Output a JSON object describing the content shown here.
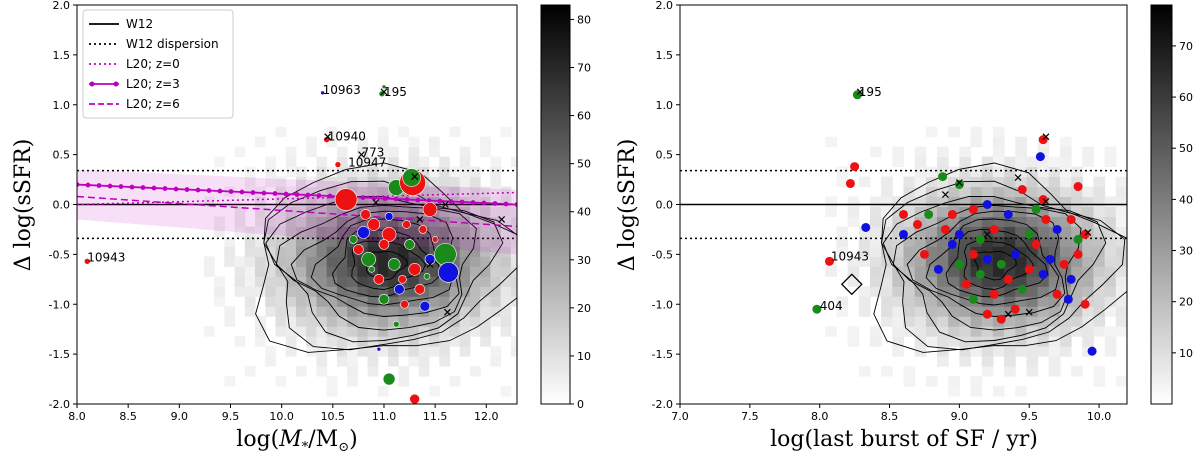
{
  "chart_data": [
    {
      "type": "scatter",
      "panel": "left",
      "xlabel": "log(M*/M⊙)",
      "xlabel_main": "log(",
      "xlabel_M": "M",
      "xlabel_sub1": "*",
      "xlabel_slash": "/M",
      "xlabel_sub2": "⊙",
      "xlabel_end": ")",
      "ylabel": "Δ log(sSFR)",
      "xlim": [
        8.0,
        12.3
      ],
      "ylim": [
        -2.0,
        2.0
      ],
      "xticks": [
        "8.0",
        "8.5",
        "9.0",
        "9.5",
        "10.0",
        "10.5",
        "11.0",
        "11.5",
        "12.0"
      ],
      "yticks": [
        "-2.0",
        "-1.5",
        "-1.0",
        "-0.5",
        "0.0",
        "0.5",
        "1.0",
        "1.5",
        "2.0"
      ],
      "colorbar_ticks": [
        "0",
        "10",
        "20",
        "30",
        "40",
        "50",
        "60",
        "70",
        "80"
      ],
      "colorbar_range": [
        0,
        83
      ],
      "legend": [
        {
          "label": "W12",
          "style": "solid",
          "color": "#000000"
        },
        {
          "label": "W12 dispersion",
          "style": "dotted",
          "color": "#000000"
        },
        {
          "label": "L20; z=0",
          "style": "dotted",
          "color": "#bf00bf"
        },
        {
          "label": "L20; z=3",
          "style": "solid-marker",
          "color": "#bf00bf"
        },
        {
          "label": "L20; z=6",
          "style": "dashed",
          "color": "#bf00bf"
        }
      ],
      "annotations": [
        {
          "text": "10963",
          "x": 10.4,
          "y": 1.15
        },
        {
          "text": "195",
          "x": 11.0,
          "y": 1.13
        },
        {
          "text": "10940",
          "x": 10.45,
          "y": 0.68
        },
        {
          "text": "773",
          "x": 10.78,
          "y": 0.52
        },
        {
          "text": "10947",
          "x": 10.65,
          "y": 0.42
        },
        {
          "text": "10943",
          "x": 8.1,
          "y": -0.53
        }
      ],
      "points": [
        {
          "x": 8.1,
          "y": -0.57,
          "c": "red",
          "s": 3
        },
        {
          "x": 10.4,
          "y": 1.12,
          "c": "blue",
          "s": 2
        },
        {
          "x": 10.98,
          "y": 1.11,
          "c": "green",
          "s": 3
        },
        {
          "x": 11.0,
          "y": 1.18,
          "c": "green",
          "s": 2
        },
        {
          "x": 10.44,
          "y": 0.65,
          "c": "red",
          "s": 3
        },
        {
          "x": 10.55,
          "y": 0.4,
          "c": "red",
          "s": 3
        },
        {
          "x": 10.63,
          "y": 0.05,
          "c": "red",
          "s": 11
        },
        {
          "x": 11.12,
          "y": 0.17,
          "c": "green",
          "s": 8
        },
        {
          "x": 11.28,
          "y": 0.22,
          "c": "red",
          "s": 13
        },
        {
          "x": 11.27,
          "y": 0.27,
          "c": "green",
          "s": 9
        },
        {
          "x": 11.45,
          "y": -0.05,
          "c": "red",
          "s": 7
        },
        {
          "x": 11.6,
          "y": -0.5,
          "c": "green",
          "s": 11
        },
        {
          "x": 11.63,
          "y": -0.68,
          "c": "blue",
          "s": 10
        },
        {
          "x": 10.9,
          "y": -0.2,
          "c": "red",
          "s": 6
        },
        {
          "x": 10.8,
          "y": -0.28,
          "c": "blue",
          "s": 6
        },
        {
          "x": 11.05,
          "y": -0.3,
          "c": "red",
          "s": 7
        },
        {
          "x": 10.85,
          "y": -0.55,
          "c": "green",
          "s": 7
        },
        {
          "x": 11.0,
          "y": -0.4,
          "c": "red",
          "s": 5
        },
        {
          "x": 11.1,
          "y": -0.6,
          "c": "green",
          "s": 6
        },
        {
          "x": 10.95,
          "y": -0.75,
          "c": "red",
          "s": 5
        },
        {
          "x": 11.15,
          "y": -0.85,
          "c": "blue",
          "s": 5
        },
        {
          "x": 11.3,
          "y": -0.65,
          "c": "red",
          "s": 6
        },
        {
          "x": 11.35,
          "y": -0.85,
          "c": "red",
          "s": 5
        },
        {
          "x": 11.2,
          "y": -1.0,
          "c": "red",
          "s": 4
        },
        {
          "x": 11.4,
          "y": -1.02,
          "c": "blue",
          "s": 5
        },
        {
          "x": 11.45,
          "y": -0.55,
          "c": "blue",
          "s": 5
        },
        {
          "x": 10.75,
          "y": -0.45,
          "c": "red",
          "s": 5
        },
        {
          "x": 10.7,
          "y": -0.35,
          "c": "green",
          "s": 4
        },
        {
          "x": 10.82,
          "y": -0.1,
          "c": "red",
          "s": 5
        },
        {
          "x": 11.0,
          "y": -0.95,
          "c": "green",
          "s": 5
        },
        {
          "x": 11.25,
          "y": -0.4,
          "c": "green",
          "s": 5
        },
        {
          "x": 11.38,
          "y": -0.25,
          "c": "red",
          "s": 4
        },
        {
          "x": 11.05,
          "y": -0.12,
          "c": "blue",
          "s": 4
        },
        {
          "x": 11.12,
          "y": -1.2,
          "c": "green",
          "s": 3
        },
        {
          "x": 10.95,
          "y": -1.45,
          "c": "blue",
          "s": 2
        },
        {
          "x": 11.05,
          "y": -1.75,
          "c": "green",
          "s": 6
        },
        {
          "x": 11.3,
          "y": -1.95,
          "c": "red",
          "s": 5
        },
        {
          "x": 11.22,
          "y": -0.2,
          "c": "red",
          "s": 4
        },
        {
          "x": 11.18,
          "y": -0.75,
          "c": "red",
          "s": 4
        },
        {
          "x": 10.88,
          "y": -0.65,
          "c": "green",
          "s": 3
        },
        {
          "x": 11.42,
          "y": -0.72,
          "c": "green",
          "s": 3
        },
        {
          "x": 11.5,
          "y": -0.35,
          "c": "red",
          "s": 3
        }
      ],
      "crosses": [
        {
          "x": 10.45,
          "y": 0.68
        },
        {
          "x": 11.0,
          "y": 1.13
        },
        {
          "x": 10.78,
          "y": 0.5
        },
        {
          "x": 11.3,
          "y": 0.28
        },
        {
          "x": 10.92,
          "y": 0.02
        },
        {
          "x": 11.6,
          "y": 0.0
        },
        {
          "x": 12.15,
          "y": -0.15
        },
        {
          "x": 11.62,
          "y": -1.08
        },
        {
          "x": 11.35,
          "y": -0.15
        },
        {
          "x": 11.45,
          "y": -0.6
        }
      ],
      "w12_dispersion": [
        -0.34,
        0.34
      ],
      "l20_z0": {
        "x": [
          8.0,
          12.3
        ],
        "y": [
          0.0,
          0.12
        ]
      },
      "l20_z3": {
        "x": [
          8.0,
          12.3
        ],
        "y": [
          0.2,
          0.0
        ]
      },
      "l20_z6": {
        "x": [
          8.0,
          12.3
        ],
        "y": [
          0.08,
          -0.22
        ]
      }
    },
    {
      "type": "scatter",
      "panel": "right",
      "xlabel": "log(last burst of SF / yr)",
      "ylabel": "Δ log(sSFR)",
      "xlim": [
        7.0,
        10.2
      ],
      "ylim": [
        -2.0,
        2.0
      ],
      "xticks": [
        "7.0",
        "7.5",
        "8.0",
        "8.5",
        "9.0",
        "9.5",
        "10.0"
      ],
      "yticks": [
        "-2.0",
        "-1.5",
        "-1.0",
        "-0.5",
        "0.0",
        "0.5",
        "1.0",
        "1.5",
        "2.0"
      ],
      "colorbar_ticks": [
        "10",
        "20",
        "30",
        "40",
        "50",
        "60",
        "70"
      ],
      "colorbar_range": [
        0,
        78
      ],
      "annotations": [
        {
          "text": "195",
          "x": 8.28,
          "y": 1.13
        },
        {
          "text": "10943",
          "x": 8.08,
          "y": -0.52
        },
        {
          "text": "404",
          "x": 8.0,
          "y": -1.02
        }
      ],
      "points": [
        {
          "x": 8.27,
          "y": 1.1,
          "c": "green"
        },
        {
          "x": 8.25,
          "y": 0.38,
          "c": "red"
        },
        {
          "x": 8.22,
          "y": 0.21,
          "c": "red"
        },
        {
          "x": 8.33,
          "y": -0.23,
          "c": "blue"
        },
        {
          "x": 8.07,
          "y": -0.57,
          "c": "red"
        },
        {
          "x": 7.98,
          "y": -1.05,
          "c": "green"
        },
        {
          "x": 8.88,
          "y": 0.28,
          "c": "green"
        },
        {
          "x": 9.0,
          "y": 0.2,
          "c": "green"
        },
        {
          "x": 9.6,
          "y": 0.65,
          "c": "red"
        },
        {
          "x": 9.58,
          "y": 0.48,
          "c": "blue"
        },
        {
          "x": 9.85,
          "y": 0.18,
          "c": "red"
        },
        {
          "x": 8.6,
          "y": -0.1,
          "c": "red"
        },
        {
          "x": 8.7,
          "y": -0.2,
          "c": "red"
        },
        {
          "x": 8.78,
          "y": -0.1,
          "c": "green"
        },
        {
          "x": 8.9,
          "y": -0.25,
          "c": "red"
        },
        {
          "x": 9.1,
          "y": -0.05,
          "c": "red"
        },
        {
          "x": 9.2,
          "y": 0.0,
          "c": "blue"
        },
        {
          "x": 9.35,
          "y": -0.1,
          "c": "blue"
        },
        {
          "x": 9.45,
          "y": 0.15,
          "c": "red"
        },
        {
          "x": 9.55,
          "y": -0.05,
          "c": "green"
        },
        {
          "x": 9.62,
          "y": -0.15,
          "c": "red"
        },
        {
          "x": 9.7,
          "y": -0.25,
          "c": "blue"
        },
        {
          "x": 9.8,
          "y": -0.15,
          "c": "red"
        },
        {
          "x": 9.85,
          "y": -0.35,
          "c": "green"
        },
        {
          "x": 9.9,
          "y": -0.3,
          "c": "red"
        },
        {
          "x": 8.75,
          "y": -0.5,
          "c": "red"
        },
        {
          "x": 8.85,
          "y": -0.65,
          "c": "blue"
        },
        {
          "x": 8.95,
          "y": -0.4,
          "c": "blue"
        },
        {
          "x": 9.0,
          "y": -0.6,
          "c": "green"
        },
        {
          "x": 9.05,
          "y": -0.8,
          "c": "red"
        },
        {
          "x": 9.1,
          "y": -0.5,
          "c": "red"
        },
        {
          "x": 9.15,
          "y": -0.7,
          "c": "green"
        },
        {
          "x": 9.2,
          "y": -0.55,
          "c": "blue"
        },
        {
          "x": 9.25,
          "y": -0.9,
          "c": "red"
        },
        {
          "x": 9.3,
          "y": -0.6,
          "c": "green"
        },
        {
          "x": 9.35,
          "y": -0.75,
          "c": "red"
        },
        {
          "x": 9.4,
          "y": -0.5,
          "c": "blue"
        },
        {
          "x": 9.45,
          "y": -0.85,
          "c": "green"
        },
        {
          "x": 9.5,
          "y": -0.65,
          "c": "red"
        },
        {
          "x": 9.55,
          "y": -0.4,
          "c": "red"
        },
        {
          "x": 9.6,
          "y": -0.7,
          "c": "blue"
        },
        {
          "x": 9.65,
          "y": -0.55,
          "c": "blue"
        },
        {
          "x": 9.7,
          "y": -0.9,
          "c": "red"
        },
        {
          "x": 9.75,
          "y": -0.6,
          "c": "red"
        },
        {
          "x": 9.8,
          "y": -0.75,
          "c": "blue"
        },
        {
          "x": 9.85,
          "y": -0.5,
          "c": "red"
        },
        {
          "x": 9.9,
          "y": -1.0,
          "c": "red"
        },
        {
          "x": 9.95,
          "y": -1.47,
          "c": "blue"
        },
        {
          "x": 9.78,
          "y": -0.95,
          "c": "blue"
        },
        {
          "x": 9.2,
          "y": -1.1,
          "c": "red"
        },
        {
          "x": 9.3,
          "y": -1.15,
          "c": "red"
        },
        {
          "x": 9.1,
          "y": -0.95,
          "c": "green"
        },
        {
          "x": 9.4,
          "y": -1.05,
          "c": "red"
        },
        {
          "x": 9.0,
          "y": -0.3,
          "c": "blue"
        },
        {
          "x": 9.25,
          "y": -0.25,
          "c": "red"
        },
        {
          "x": 9.5,
          "y": -0.3,
          "c": "green"
        },
        {
          "x": 8.95,
          "y": -0.1,
          "c": "red"
        },
        {
          "x": 9.6,
          "y": 0.05,
          "c": "red"
        },
        {
          "x": 9.15,
          "y": -0.35,
          "c": "green"
        },
        {
          "x": 8.6,
          "y": -0.3,
          "c": "blue"
        }
      ],
      "crosses": [
        {
          "x": 8.29,
          "y": 1.13
        },
        {
          "x": 9.62,
          "y": 0.68
        },
        {
          "x": 9.0,
          "y": 0.22
        },
        {
          "x": 9.42,
          "y": 0.27
        },
        {
          "x": 8.9,
          "y": 0.1
        },
        {
          "x": 9.62,
          "y": 0.03
        },
        {
          "x": 9.2,
          "y": -0.3
        },
        {
          "x": 9.92,
          "y": -0.28
        },
        {
          "x": 9.35,
          "y": -1.1
        },
        {
          "x": 9.5,
          "y": -1.08
        }
      ],
      "diamond": {
        "x": 8.23,
        "y": -0.8
      },
      "w12": 0.0,
      "w12_dispersion": [
        -0.34,
        0.34
      ]
    }
  ]
}
